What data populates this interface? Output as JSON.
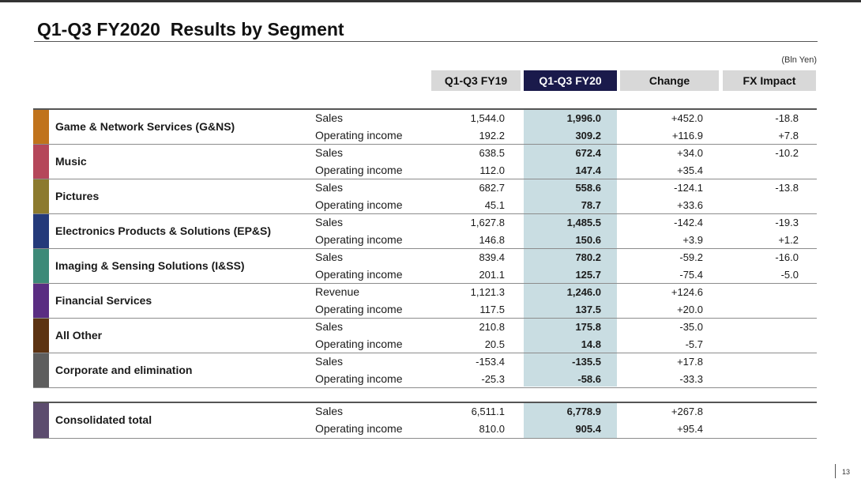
{
  "title": "Q1-Q3 FY2020  Results by Segment",
  "unit": "(Bln Yen)",
  "columns": {
    "fy19": "Q1-Q3 FY19",
    "fy20": "Q1-Q3 FY20",
    "change": "Change",
    "fx": "FX Impact"
  },
  "colors": {
    "header_accent": "#1a1a4b",
    "highlight": "#c9dde2"
  },
  "segments": [
    {
      "name": "Game & Network Services (G&NS)",
      "color": "#c0731c",
      "rows": [
        {
          "label": "Sales",
          "fy19": "1,544.0",
          "fy20": "1,996.0",
          "change": "+452.0",
          "fx": "-18.8"
        },
        {
          "label": "Operating income",
          "fy19": "192.2",
          "fy20": "309.2",
          "change": "+116.9",
          "fx": "+7.8"
        }
      ]
    },
    {
      "name": "Music",
      "color": "#b5475a",
      "rows": [
        {
          "label": "Sales",
          "fy19": "638.5",
          "fy20": "672.4",
          "change": "+34.0",
          "fx": "-10.2"
        },
        {
          "label": "Operating income",
          "fy19": "112.0",
          "fy20": "147.4",
          "change": "+35.4",
          "fx": ""
        }
      ]
    },
    {
      "name": "Pictures",
      "color": "#8c7a2e",
      "rows": [
        {
          "label": "Sales",
          "fy19": "682.7",
          "fy20": "558.6",
          "change": "-124.1",
          "fx": "-13.8"
        },
        {
          "label": "Operating income",
          "fy19": "45.1",
          "fy20": "78.7",
          "change": "+33.6",
          "fx": ""
        }
      ]
    },
    {
      "name": "Electronics Products & Solutions (EP&S)",
      "color": "#243a7a",
      "rows": [
        {
          "label": "Sales",
          "fy19": "1,627.8",
          "fy20": "1,485.5",
          "change": "-142.4",
          "fx": "-19.3"
        },
        {
          "label": "Operating income",
          "fy19": "146.8",
          "fy20": "150.6",
          "change": "+3.9",
          "fx": "+1.2"
        }
      ]
    },
    {
      "name": "Imaging & Sensing Solutions (I&SS)",
      "color": "#3d8a78",
      "rows": [
        {
          "label": "Sales",
          "fy19": "839.4",
          "fy20": "780.2",
          "change": "-59.2",
          "fx": "-16.0"
        },
        {
          "label": "Operating income",
          "fy19": "201.1",
          "fy20": "125.7",
          "change": "-75.4",
          "fx": "-5.0"
        }
      ]
    },
    {
      "name": "Financial Services",
      "color": "#5a2d82",
      "rows": [
        {
          "label": "Revenue",
          "fy19": "1,121.3",
          "fy20": "1,246.0",
          "change": "+124.6",
          "fx": ""
        },
        {
          "label": "Operating income",
          "fy19": "117.5",
          "fy20": "137.5",
          "change": "+20.0",
          "fx": ""
        }
      ]
    },
    {
      "name": "All Other",
      "color": "#5c3312",
      "rows": [
        {
          "label": "Sales",
          "fy19": "210.8",
          "fy20": "175.8",
          "change": "-35.0",
          "fx": ""
        },
        {
          "label": "Operating income",
          "fy19": "20.5",
          "fy20": "14.8",
          "change": "-5.7",
          "fx": ""
        }
      ]
    },
    {
      "name": "Corporate and elimination",
      "color": "#5e5e5e",
      "rows": [
        {
          "label": "Sales",
          "fy19": "-153.4",
          "fy20": "-135.5",
          "change": "+17.8",
          "fx": ""
        },
        {
          "label": "Operating income",
          "fy19": "-25.3",
          "fy20": "-58.6",
          "change": "-33.3",
          "fx": ""
        }
      ]
    }
  ],
  "total": {
    "name": "Consolidated total",
    "color": "#5c4c6e",
    "rows": [
      {
        "label": "Sales",
        "fy19": "6,511.1",
        "fy20": "6,778.9",
        "change": "+267.8",
        "fx": ""
      },
      {
        "label": "Operating income",
        "fy19": "810.0",
        "fy20": "905.4",
        "change": "+95.4",
        "fx": ""
      }
    ]
  },
  "page_number": "13"
}
